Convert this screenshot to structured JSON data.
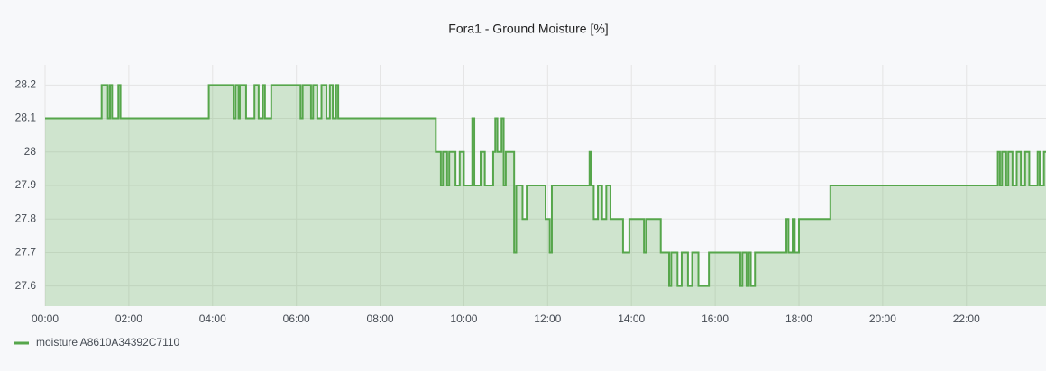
{
  "chart_data": {
    "type": "step-area",
    "title": "Fora1 - Ground Moisture [%]",
    "x": [
      0,
      1.35,
      1.5,
      1.55,
      1.6,
      1.75,
      1.8,
      3.91,
      4.5,
      4.55,
      4.62,
      4.65,
      4.8,
      5.0,
      5.1,
      5.2,
      5.25,
      5.4,
      6.1,
      6.15,
      6.35,
      6.4,
      6.5,
      6.6,
      6.72,
      6.8,
      6.87,
      6.95,
      7.0,
      9.33,
      9.45,
      9.5,
      9.6,
      9.65,
      9.8,
      9.9,
      10.0,
      10.2,
      10.25,
      10.4,
      10.5,
      10.7,
      10.75,
      10.8,
      10.9,
      10.95,
      11.0,
      11.2,
      11.25,
      11.4,
      11.5,
      11.95,
      12.05,
      12.1,
      13.0,
      13.03,
      13.1,
      13.2,
      13.3,
      13.4,
      13.5,
      13.8,
      13.95,
      14.3,
      14.35,
      14.7,
      14.9,
      14.95,
      15.1,
      15.2,
      15.35,
      15.45,
      15.6,
      15.85,
      16.6,
      16.65,
      16.75,
      16.8,
      16.85,
      16.95,
      17.7,
      17.75,
      17.85,
      17.9,
      18.0,
      18.75,
      22.75,
      22.8,
      22.85,
      22.95,
      23.0,
      23.1,
      23.2,
      23.3,
      23.4,
      23.5,
      23.7,
      23.75,
      23.85
    ],
    "series": [
      {
        "name": "moisture A8610A34392C7110",
        "color": "#56a64b",
        "values": [
          28.1,
          28.2,
          28.1,
          28.2,
          28.1,
          28.2,
          28.1,
          28.2,
          28.1,
          28.2,
          28.1,
          28.2,
          28.1,
          28.2,
          28.1,
          28.2,
          28.1,
          28.2,
          28.1,
          28.2,
          28.1,
          28.2,
          28.1,
          28.2,
          28.1,
          28.2,
          28.1,
          28.2,
          28.1,
          28.0,
          27.9,
          28.0,
          27.9,
          28.0,
          27.9,
          28.0,
          27.9,
          28.1,
          27.9,
          28.0,
          27.9,
          28.0,
          28.1,
          28.0,
          28.1,
          27.9,
          28.0,
          27.7,
          27.9,
          27.8,
          27.9,
          27.8,
          27.7,
          27.9,
          28.0,
          27.9,
          27.8,
          27.9,
          27.8,
          27.9,
          27.8,
          27.7,
          27.8,
          27.7,
          27.8,
          27.7,
          27.6,
          27.7,
          27.6,
          27.7,
          27.6,
          27.7,
          27.6,
          27.7,
          27.6,
          27.7,
          27.6,
          27.7,
          27.6,
          27.7,
          27.8,
          27.7,
          27.8,
          27.7,
          27.8,
          27.9,
          28.0,
          27.9,
          28.0,
          27.9,
          28.0,
          27.9,
          28.0,
          27.9,
          28.0,
          27.9,
          28.0,
          27.9,
          28.0
        ]
      }
    ],
    "xlim": [
      0,
      23.9
    ],
    "ylim": [
      27.54,
      28.26
    ],
    "xticks": [
      {
        "value": 0,
        "label": "00:00"
      },
      {
        "value": 2,
        "label": "02:00"
      },
      {
        "value": 4,
        "label": "04:00"
      },
      {
        "value": 6,
        "label": "06:00"
      },
      {
        "value": 8,
        "label": "08:00"
      },
      {
        "value": 10,
        "label": "10:00"
      },
      {
        "value": 12,
        "label": "12:00"
      },
      {
        "value": 14,
        "label": "14:00"
      },
      {
        "value": 16,
        "label": "16:00"
      },
      {
        "value": 18,
        "label": "18:00"
      },
      {
        "value": 20,
        "label": "20:00"
      },
      {
        "value": 22,
        "label": "22:00"
      }
    ],
    "yticks": [
      27.6,
      27.7,
      27.8,
      27.9,
      28,
      28.1,
      28.2
    ],
    "grid": true
  }
}
